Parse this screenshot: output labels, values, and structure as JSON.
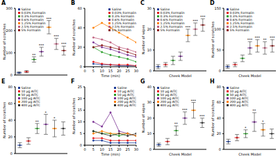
{
  "chart_data": [
    {
      "title": "A",
      "type": "dot",
      "categories": [
        "Saline",
        "0.03% Formalin",
        "0.3% Formalin",
        "0.6% Formalin",
        "1.25% Formalin",
        "2.5% Formalin",
        "5% Formalin"
      ],
      "values": [
        10,
        15,
        70,
        105,
        215,
        140,
        110
      ],
      "errors": [
        4,
        5,
        12,
        20,
        30,
        25,
        20
      ],
      "colors": [
        "#1f3f99",
        "#e41a1c",
        "#2ca02c",
        "#7b3294",
        "#ff7f00",
        "#c0607f",
        "#8b1a1a"
      ],
      "annotations": [
        null,
        null,
        "**",
        "***",
        "***",
        "***",
        "***"
      ],
      "ylabel": "Number of scratches",
      "ylim": [
        0,
        300
      ],
      "yticks": [
        0,
        100,
        200,
        300
      ],
      "tick_labels": "y",
      "legend": "upper left",
      "grid": false
    },
    {
      "title": "B",
      "type": "line",
      "x": [
        5,
        10,
        15,
        20,
        25,
        30
      ],
      "series": [
        {
          "name": "Saline",
          "color": "#1f3f99",
          "values": [
            3,
            2,
            2,
            1,
            1,
            1
          ]
        },
        {
          "name": "0.03% Formalin",
          "color": "#e41a1c",
          "values": [
            5,
            3,
            2,
            2,
            2,
            1
          ]
        },
        {
          "name": "0.3% Formalin",
          "color": "#2ca02c",
          "values": [
            20,
            15,
            12,
            10,
            8,
            5
          ]
        },
        {
          "name": "0.6% Formalin",
          "color": "#7b3294",
          "values": [
            25,
            20,
            18,
            15,
            12,
            10
          ]
        },
        {
          "name": "1.25% Formalin",
          "color": "#ff7f00",
          "values": [
            40,
            45,
            40,
            35,
            30,
            25
          ]
        },
        {
          "name": "2.5% Formalin",
          "color": "#c0607f",
          "values": [
            30,
            28,
            25,
            20,
            18,
            15
          ]
        },
        {
          "name": "5% Formalin",
          "color": "#8b1a1a",
          "values": [
            20,
            22,
            20,
            18,
            15,
            12
          ]
        }
      ],
      "xlabel": "Time (min)",
      "ylabel": "Number of scratches",
      "xlim": [
        0,
        30
      ],
      "xticks": [
        0,
        5,
        10,
        15,
        20,
        25,
        30
      ],
      "ylim": [
        0,
        60
      ],
      "yticks": [
        0,
        20,
        40,
        60
      ],
      "marker": "circle",
      "legend": "upper right",
      "grid": false
    },
    {
      "title": "C",
      "type": "dot",
      "categories": [
        "Saline",
        "0.03% Formalin",
        "0.3% Formalin",
        "0.6% Formalin",
        "1.25% Formalin",
        "2.5% Formalin",
        "5% Formalin"
      ],
      "values": [
        2,
        3,
        5,
        7,
        17,
        20,
        22
      ],
      "errors": [
        1,
        1,
        2,
        2,
        3,
        3,
        3
      ],
      "colors": [
        "#1f3f99",
        "#e41a1c",
        "#2ca02c",
        "#7b3294",
        "#ff7f00",
        "#c0607f",
        "#8b1a1a"
      ],
      "annotations": [
        null,
        null,
        null,
        null,
        "***",
        "***",
        "***"
      ],
      "xlabel": "Cheek Model",
      "ylabel": "Number of wipes",
      "ylim": [
        0,
        30
      ],
      "yticks": [
        0,
        10,
        20,
        30
      ],
      "tick_labels": "y",
      "legend": "upper left",
      "grid": false
    },
    {
      "title": "D",
      "type": "dot",
      "categories": [
        "Saline",
        "0.03% Formalin",
        "0.3% Formalin",
        "0.6% Formalin",
        "1.25% Formalin",
        "2.5% Formalin",
        "5% Formalin"
      ],
      "values": [
        10,
        15,
        30,
        55,
        60,
        55,
        60
      ],
      "errors": [
        4,
        5,
        8,
        15,
        15,
        15,
        15
      ],
      "colors": [
        "#1f3f99",
        "#e41a1c",
        "#2ca02c",
        "#7b3294",
        "#ff7f00",
        "#c0607f",
        "#8b1a1a"
      ],
      "annotations": [
        null,
        null,
        null,
        "***",
        "***",
        "**",
        "***"
      ],
      "xlabel": "Cheek Model",
      "ylabel": "Number of scratches",
      "ylim": [
        0,
        150
      ],
      "yticks": [
        0,
        50,
        100,
        150
      ],
      "tick_labels": "y",
      "legend": "upper left",
      "grid": false
    },
    {
      "title": "E",
      "type": "dot",
      "categories": [
        "Saline",
        "10 µg AITC",
        "50 µg AITC",
        "100 µg AITC",
        "200 µg AITC",
        "400 µg AITC"
      ],
      "values": [
        10,
        15,
        30,
        35,
        30,
        30
      ],
      "errors": [
        3,
        4,
        6,
        12,
        10,
        8
      ],
      "colors": [
        "#1f3f99",
        "#e41a1c",
        "#2ca02c",
        "#7b3294",
        "#ff7f00",
        "#333333"
      ],
      "annotations": [
        null,
        null,
        "**",
        "*",
        "*",
        null
      ],
      "ylabel": "Number of scratches",
      "ylim": [
        0,
        80
      ],
      "yticks": [
        0,
        20,
        40,
        60,
        80
      ],
      "tick_labels": "y",
      "legend": "upper left",
      "grid": false
    },
    {
      "title": "F",
      "type": "line",
      "x": [
        5,
        10,
        15,
        20,
        25,
        30
      ],
      "series": [
        {
          "name": "Saline",
          "color": "#1f3f99",
          "values": [
            2,
            2,
            1,
            1,
            1,
            1
          ]
        },
        {
          "name": "10 µg AITC",
          "color": "#e41a1c",
          "values": [
            3,
            3,
            2,
            2,
            2,
            2
          ]
        },
        {
          "name": "50 µg AITC",
          "color": "#2ca02c",
          "values": [
            6,
            5,
            5,
            4,
            5,
            4
          ]
        },
        {
          "name": "100 µg AITC",
          "color": "#7b3294",
          "values": [
            10,
            8,
            14,
            6,
            5,
            4
          ]
        },
        {
          "name": "200 µg AITC",
          "color": "#ff7f00",
          "values": [
            5,
            6,
            5,
            5,
            5,
            4
          ]
        },
        {
          "name": "400 µg AITC",
          "color": "#333333",
          "values": [
            6,
            5,
            4,
            5,
            4,
            5
          ]
        }
      ],
      "xlabel": "Time (min)",
      "ylabel": "Number of scratches",
      "xlim": [
        0,
        30
      ],
      "xticks": [
        0,
        5,
        10,
        15,
        20,
        25,
        30
      ],
      "ylim": [
        0,
        25
      ],
      "yticks": [
        0,
        5,
        10,
        15,
        20,
        25
      ],
      "marker": "circle",
      "legend": "upper right",
      "grid": false
    },
    {
      "title": "G",
      "type": "dot",
      "categories": [
        "Saline",
        "10 µg AITC",
        "50 µg AITC",
        "100 µg AITC",
        "200 µg AITC",
        "400 µg AITC"
      ],
      "values": [
        3,
        5,
        12,
        20,
        25,
        17
      ],
      "errors": [
        1,
        2,
        3,
        4,
        5,
        3
      ],
      "colors": [
        "#1f3f99",
        "#e41a1c",
        "#2ca02c",
        "#7b3294",
        "#ff7f00",
        "#333333"
      ],
      "annotations": [
        null,
        null,
        "**",
        "***",
        "***",
        "***"
      ],
      "xlabel": "Cheek Model",
      "ylabel": "Number of wipes",
      "ylim": [
        0,
        40
      ],
      "yticks": [
        0,
        10,
        20,
        30,
        40
      ],
      "tick_labels": "y",
      "legend": "upper left",
      "grid": false
    },
    {
      "title": "H",
      "type": "dot",
      "categories": [
        "Saline",
        "10 µg AITC",
        "50 µg AITC",
        "100 µg AITC",
        "200 µg AITC",
        "400 µg AITC"
      ],
      "values": [
        10,
        15,
        20,
        35,
        25,
        20
      ],
      "errors": [
        3,
        4,
        5,
        12,
        8,
        6
      ],
      "colors": [
        "#1f3f99",
        "#e41a1c",
        "#2ca02c",
        "#7b3294",
        "#ff7f00",
        "#333333"
      ],
      "annotations": [
        null,
        null,
        "*",
        "**",
        "*",
        null
      ],
      "xlabel": "Cheek Model",
      "ylabel": "Number of scratches",
      "ylim": [
        0,
        80
      ],
      "yticks": [
        0,
        20,
        40,
        60,
        80
      ],
      "tick_labels": "y",
      "legend": "upper left",
      "grid": false
    }
  ]
}
